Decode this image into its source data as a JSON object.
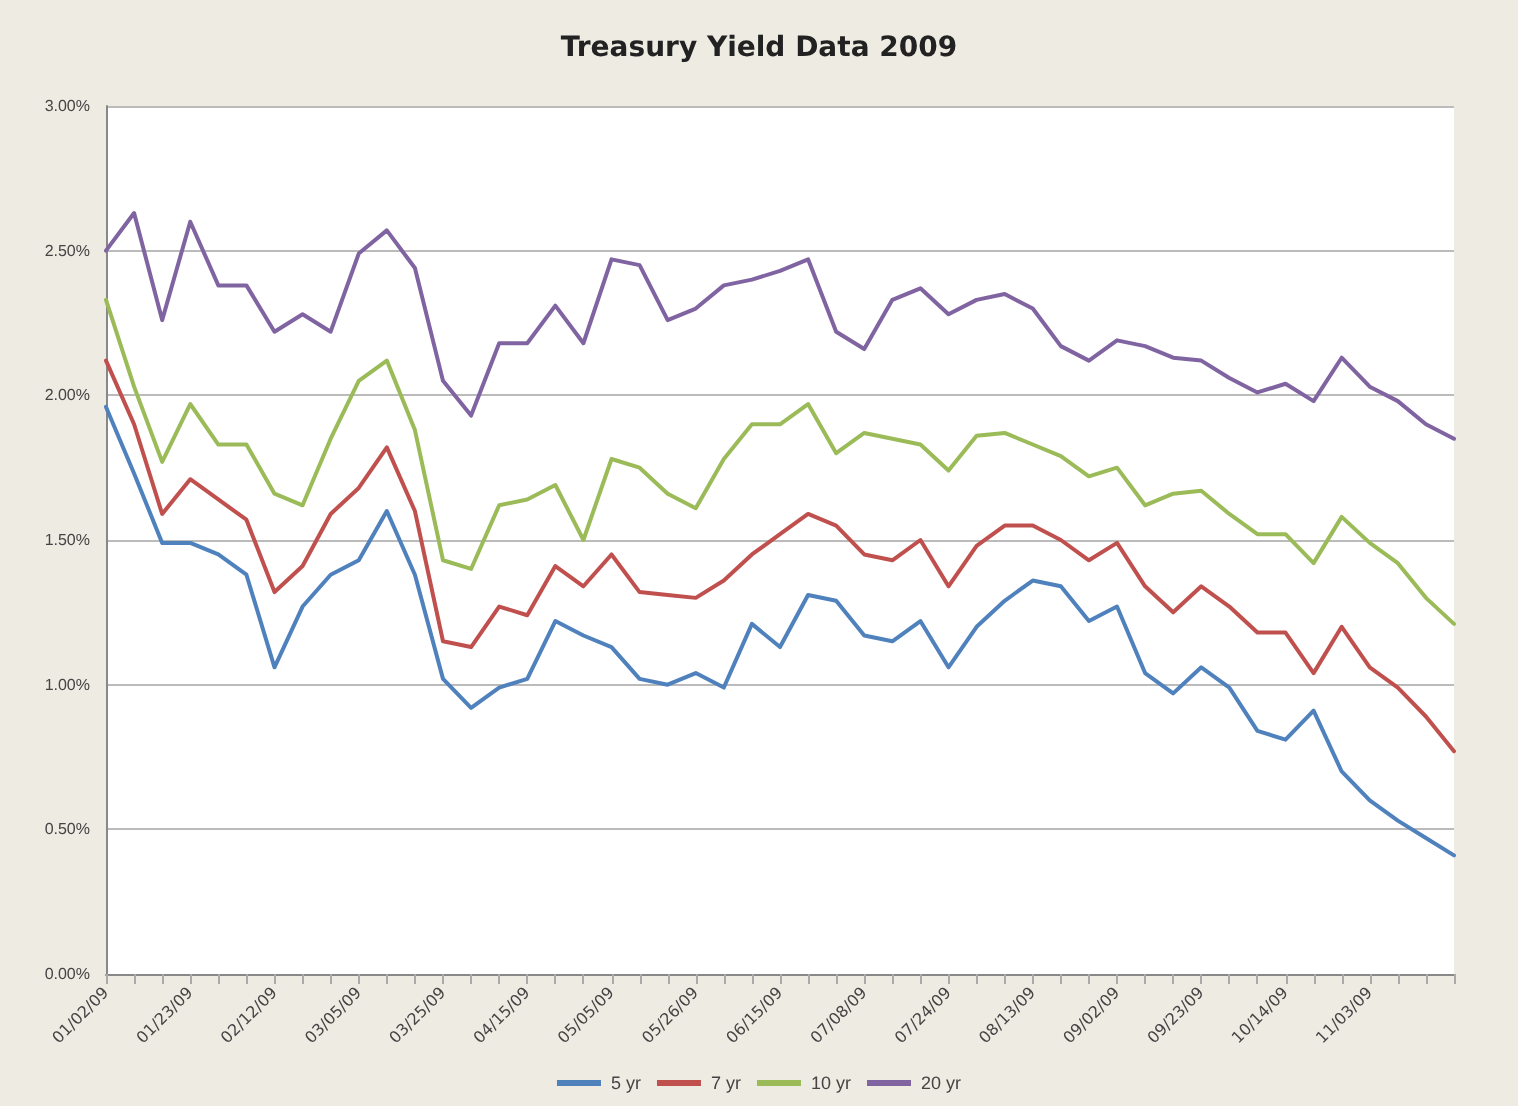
{
  "chart_data": {
    "type": "line",
    "title": "Treasury Yield Data 2009",
    "categories": [
      "01/02/09",
      null,
      null,
      "01/23/09",
      null,
      null,
      "02/12/09",
      null,
      null,
      "03/05/09",
      null,
      null,
      "03/25/09",
      null,
      null,
      "04/15/09",
      null,
      null,
      "05/05/09",
      null,
      null,
      "05/26/09",
      null,
      null,
      "06/15/09",
      null,
      null,
      "07/08/09",
      null,
      null,
      "07/24/09",
      null,
      null,
      "08/13/09",
      null,
      null,
      "09/02/09",
      null,
      null,
      "09/23/09",
      null,
      null,
      "10/14/09",
      null,
      null,
      "11/03/09",
      null,
      null,
      null
    ],
    "series": [
      {
        "name": "5 yr",
        "color": "#4f81bd",
        "values": [
          1.96,
          1.73,
          1.49,
          1.49,
          1.45,
          1.38,
          1.06,
          1.27,
          1.38,
          1.43,
          1.6,
          1.38,
          1.02,
          0.92,
          0.99,
          1.02,
          1.22,
          1.17,
          1.13,
          1.02,
          1.0,
          1.04,
          0.99,
          1.21,
          1.13,
          1.31,
          1.29,
          1.17,
          1.15,
          1.22,
          1.06,
          1.2,
          1.29,
          1.36,
          1.34,
          1.22,
          1.27,
          1.04,
          0.97,
          1.06,
          0.99,
          0.84,
          0.81,
          0.91,
          0.7,
          0.6,
          0.53,
          0.47,
          0.41
        ]
      },
      {
        "name": "7 yr",
        "color": "#c0504d",
        "values": [
          2.12,
          1.9,
          1.59,
          1.71,
          1.64,
          1.57,
          1.32,
          1.41,
          1.59,
          1.68,
          1.82,
          1.6,
          1.15,
          1.13,
          1.27,
          1.24,
          1.41,
          1.34,
          1.45,
          1.32,
          1.31,
          1.3,
          1.36,
          1.45,
          1.52,
          1.59,
          1.55,
          1.45,
          1.43,
          1.5,
          1.34,
          1.48,
          1.55,
          1.55,
          1.5,
          1.43,
          1.49,
          1.34,
          1.25,
          1.34,
          1.27,
          1.18,
          1.18,
          1.04,
          1.2,
          1.06,
          0.99,
          0.89,
          0.77
        ]
      },
      {
        "name": "10 yr",
        "color": "#9bbb59",
        "values": [
          2.33,
          2.03,
          1.77,
          1.97,
          1.83,
          1.83,
          1.66,
          1.62,
          1.85,
          2.05,
          2.12,
          1.88,
          1.43,
          1.4,
          1.62,
          1.64,
          1.69,
          1.5,
          1.78,
          1.75,
          1.66,
          1.61,
          1.78,
          1.9,
          1.9,
          1.97,
          1.8,
          1.87,
          1.85,
          1.83,
          1.74,
          1.86,
          1.87,
          1.83,
          1.79,
          1.72,
          1.75,
          1.62,
          1.66,
          1.67,
          1.59,
          1.52,
          1.52,
          1.42,
          1.58,
          1.49,
          1.42,
          1.3,
          1.21
        ]
      },
      {
        "name": "20 yr",
        "color": "#8064a2",
        "values": [
          2.5,
          2.63,
          2.26,
          2.6,
          2.38,
          2.38,
          2.22,
          2.28,
          2.22,
          2.49,
          2.57,
          2.44,
          2.05,
          1.93,
          2.18,
          2.18,
          2.31,
          2.18,
          2.47,
          2.45,
          2.26,
          2.3,
          2.38,
          2.4,
          2.43,
          2.47,
          2.22,
          2.16,
          2.33,
          2.37,
          2.28,
          2.33,
          2.35,
          2.3,
          2.17,
          2.12,
          2.19,
          2.17,
          2.13,
          2.12,
          2.06,
          2.01,
          2.04,
          1.98,
          2.13,
          2.03,
          1.98,
          1.9,
          1.85
        ]
      }
    ],
    "ylim": [
      0,
      3
    ],
    "yticks": [
      {
        "value": 0,
        "label": "0.00%"
      },
      {
        "value": 0.5,
        "label": "0.50%"
      },
      {
        "value": 1,
        "label": "1.00%"
      },
      {
        "value": 1.5,
        "label": "1.50%"
      },
      {
        "value": 2,
        "label": "2.00%"
      },
      {
        "value": 2.5,
        "label": "2.50%"
      },
      {
        "value": 3,
        "label": "3.00%"
      }
    ],
    "grid": "y",
    "legend": "bottom",
    "marker": "none",
    "line_style": "solid"
  }
}
